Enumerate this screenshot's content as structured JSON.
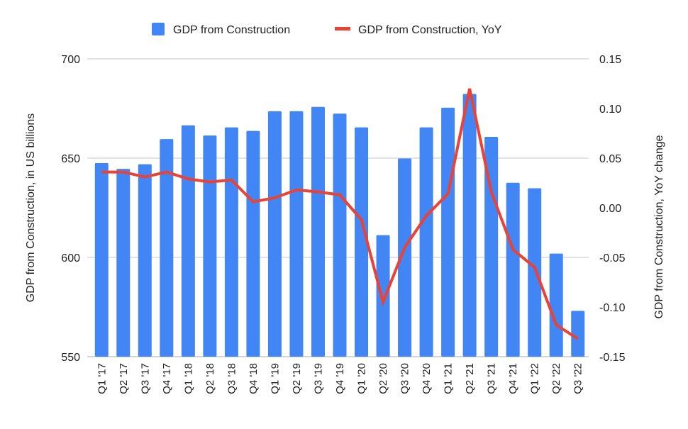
{
  "chart_data": {
    "type": "bar+line",
    "categories": [
      "Q1 '17",
      "Q2 '17",
      "Q3 '17",
      "Q4 '17",
      "Q1 '18",
      "Q2 '18",
      "Q3 '18",
      "Q4 '18",
      "Q1 '19",
      "Q2 '19",
      "Q3 '19",
      "Q4 '19",
      "Q1 '20",
      "Q2 '20",
      "Q3 '20",
      "Q4 '20",
      "Q1 '21",
      "Q2 '21",
      "Q3 '21",
      "Q4 '21",
      "Q1 '22",
      "Q2 '22",
      "Q3 '22"
    ],
    "series": [
      {
        "name": "GDP from Construction",
        "type": "bar",
        "axis": "left",
        "color": "#4285f4",
        "values": [
          647.5,
          644.6,
          646.9,
          659.6,
          666.5,
          661.4,
          665.5,
          663.7,
          673.6,
          673.6,
          675.8,
          672.4,
          665.5,
          611.2,
          649.8,
          665.5,
          675.4,
          682.3,
          660.7,
          637.6,
          634.8,
          601.9,
          573.1
        ]
      },
      {
        "name": "GDP from Construction, YoY",
        "type": "line",
        "axis": "right",
        "color": "#ea4335",
        "values": [
          0.036,
          0.036,
          0.031,
          0.036,
          0.029,
          0.026,
          0.028,
          0.006,
          0.01,
          0.018,
          0.016,
          0.013,
          -0.012,
          -0.095,
          -0.04,
          -0.008,
          0.014,
          0.12,
          0.016,
          -0.042,
          -0.06,
          -0.118,
          -0.132
        ]
      }
    ],
    "left_axis": {
      "label": "GDP from Construction, in US billions",
      "ylim": [
        550,
        700
      ],
      "ticks": [
        550,
        600,
        650,
        700
      ],
      "tick_labels": [
        "550",
        "600",
        "650",
        "700"
      ]
    },
    "right_axis": {
      "label": "GDP from Construction, YoY change",
      "ylim": [
        -0.15,
        0.15
      ],
      "ticks": [
        -0.15,
        -0.1,
        -0.05,
        0,
        0.05,
        0.1,
        0.15
      ],
      "tick_labels": [
        "-0.15",
        "-0.10",
        "-0.05",
        "0.00",
        "0.05",
        "0.10",
        "0.15"
      ]
    },
    "grid": true,
    "legend": "top"
  }
}
